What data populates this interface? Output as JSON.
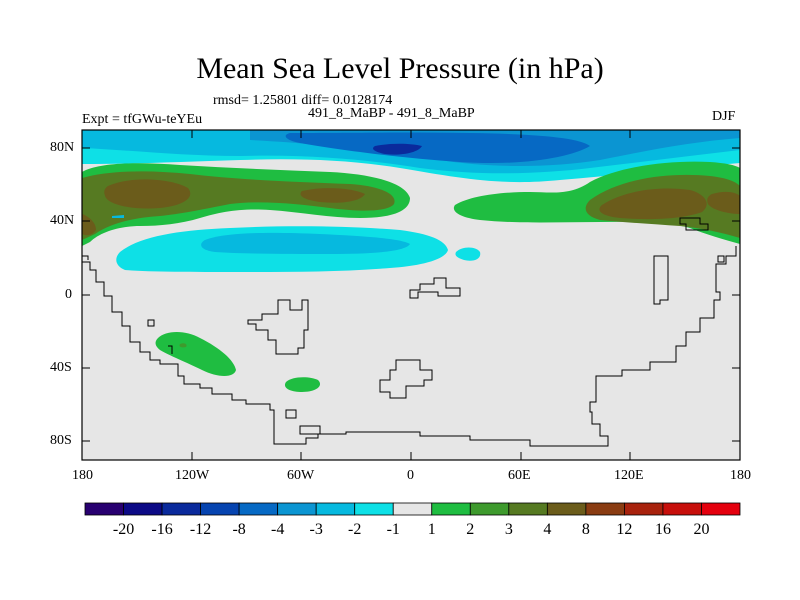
{
  "title": "Mean Sea Level Pressure (in hPa)",
  "stats": "rmsd= 1.25801 diff= 0.0128174",
  "experiment": "Expt = tfGWu-teYEu",
  "comparison": "491_8_MaBP - 491_8_MaBP",
  "season": "DJF",
  "lat_labels": [
    "80N",
    "40N",
    "0",
    "40S",
    "80S"
  ],
  "lon_labels": [
    "180",
    "120W",
    "60W",
    "0",
    "60E",
    "120E",
    "180"
  ],
  "colorbar": {
    "labels": [
      "-20",
      "-16",
      "-12",
      "-8",
      "-4",
      "-3",
      "-2",
      "-1",
      "1",
      "2",
      "3",
      "4",
      "8",
      "12",
      "16",
      "20"
    ],
    "colors": [
      "#280070",
      "#0c0a86",
      "#0a2a9c",
      "#0644b0",
      "#0669c4",
      "#0b95d2",
      "#06b9df",
      "#0ee0e6",
      "#e6e6e6",
      "#1fbd41",
      "#3e9a2d",
      "#567a22",
      "#6b5c1b",
      "#8a3c12",
      "#a8220d",
      "#c70f0b",
      "#e4000e"
    ]
  },
  "colors": {
    "background": "#e6e6e6",
    "negative_1": "#0ee0e6",
    "negative_2": "#06b9df",
    "negative_3": "#0b95d2",
    "negative_4": "#0669c4",
    "negative_8": "#0a2a9c",
    "positive_1": "#1fbd41",
    "positive_3": "#567a22",
    "positive_4": "#6b5c1b"
  }
}
